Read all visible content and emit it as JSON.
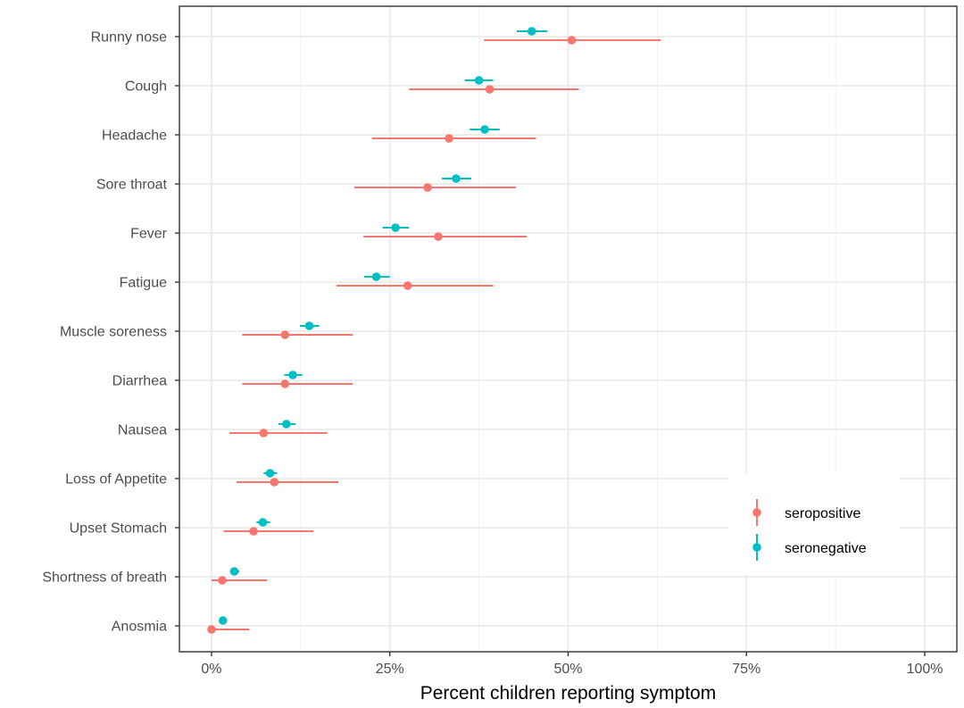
{
  "chart_data": {
    "type": "scatter",
    "title": "",
    "xlabel": "Percent children reporting symptom",
    "ylabel": "",
    "xlim": [
      -0.045,
      1.045
    ],
    "xticks": [
      0,
      0.25,
      0.5,
      0.75,
      1.0
    ],
    "xtick_labels": [
      "0%",
      "25%",
      "50%",
      "75%",
      "100%"
    ],
    "grid": true,
    "legend_position": "bottom-right",
    "categories": [
      "Runny nose",
      "Cough",
      "Headache",
      "Sore throat",
      "Fever",
      "Fatigue",
      "Muscle soreness",
      "Diarrhea",
      "Nausea",
      "Loss of Appetite",
      "Upset Stomach",
      "Shortness of breath",
      "Anosmia"
    ],
    "series": [
      {
        "name": "seropositive",
        "color": "#F8766D",
        "values": [
          0.505,
          0.39,
          0.333,
          0.303,
          0.318,
          0.275,
          0.103,
          0.103,
          0.073,
          0.088,
          0.059,
          0.015,
          0.0
        ],
        "lower": [
          0.382,
          0.277,
          0.225,
          0.2,
          0.213,
          0.175,
          0.043,
          0.043,
          0.025,
          0.035,
          0.017,
          0.0,
          0.0
        ],
        "upper": [
          0.63,
          0.515,
          0.455,
          0.427,
          0.442,
          0.395,
          0.198,
          0.198,
          0.162,
          0.178,
          0.143,
          0.078,
          0.053
        ]
      },
      {
        "name": "seronegative",
        "color": "#00BFC4",
        "values": [
          0.449,
          0.375,
          0.383,
          0.343,
          0.258,
          0.231,
          0.137,
          0.114,
          0.105,
          0.082,
          0.072,
          0.032,
          0.016
        ],
        "lower": [
          0.428,
          0.355,
          0.362,
          0.323,
          0.24,
          0.214,
          0.124,
          0.102,
          0.094,
          0.073,
          0.063,
          0.026,
          0.012
        ],
        "upper": [
          0.471,
          0.395,
          0.404,
          0.364,
          0.277,
          0.25,
          0.151,
          0.127,
          0.118,
          0.092,
          0.082,
          0.039,
          0.021
        ]
      }
    ]
  }
}
